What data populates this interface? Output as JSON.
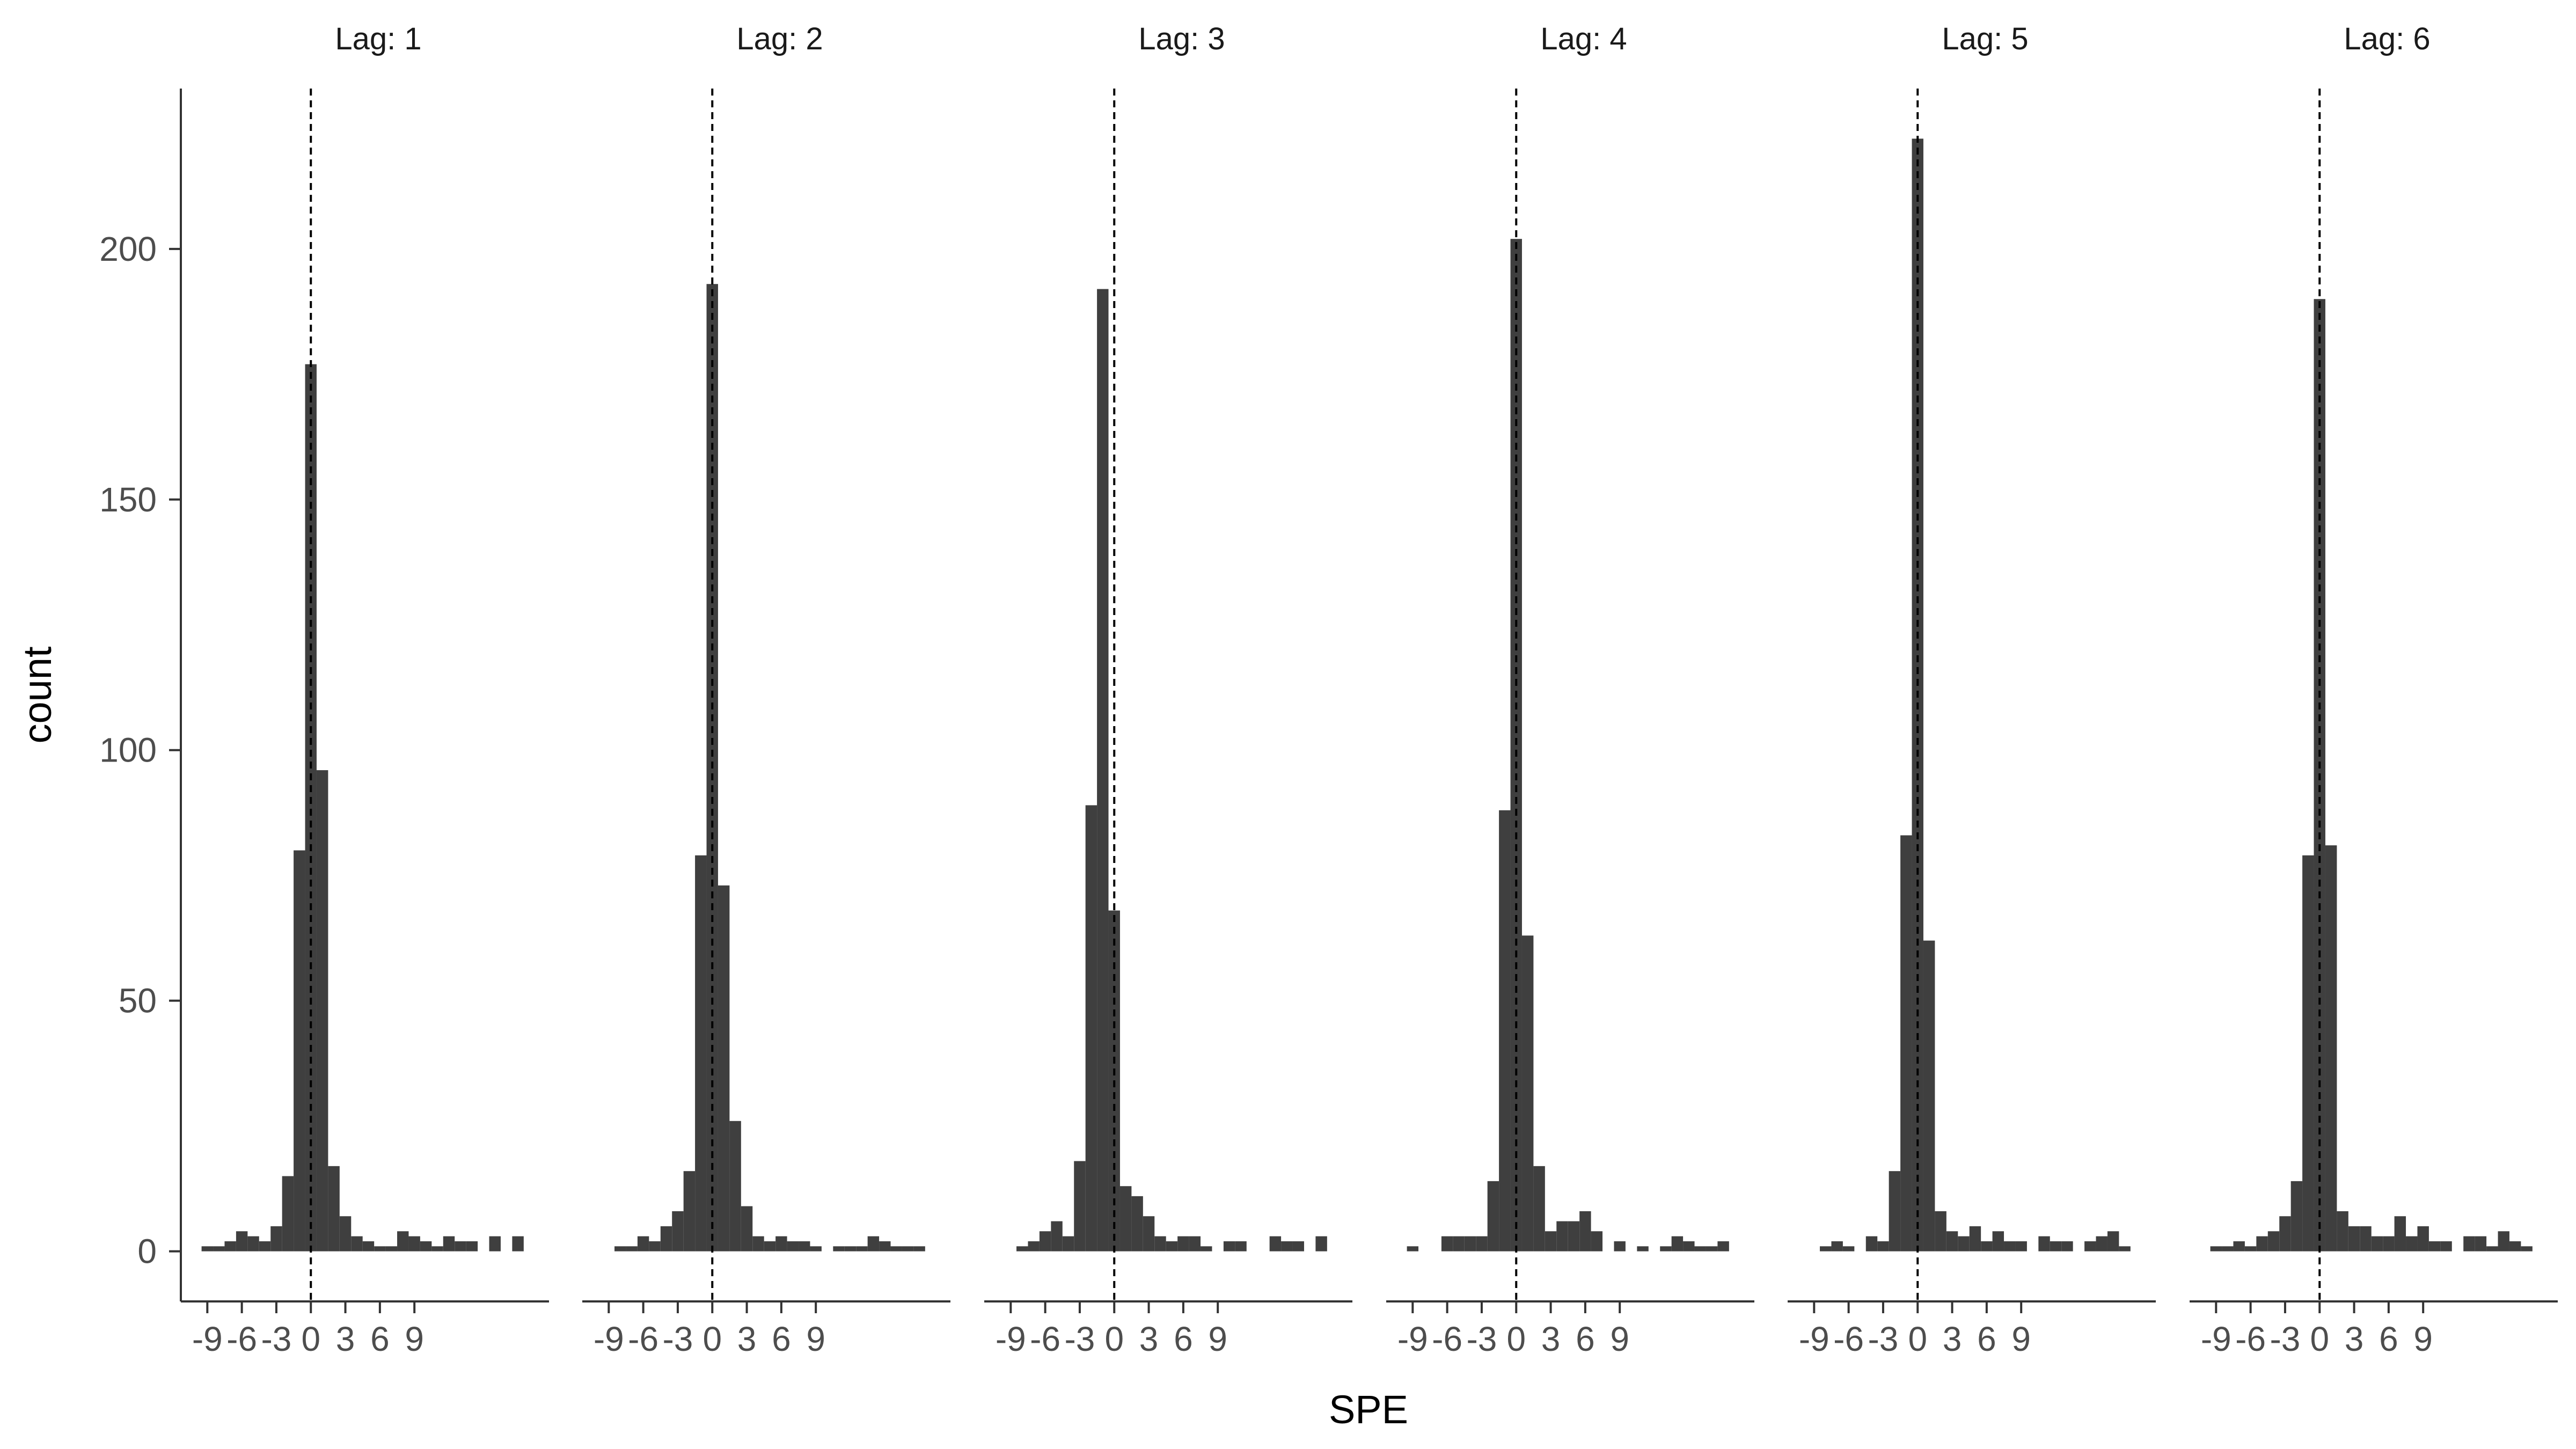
{
  "chart_data": {
    "type": "bar",
    "xlabel": "SPE",
    "ylabel": "count",
    "ylim": [
      -10,
      232
    ],
    "yticks": [
      0,
      50,
      100,
      150,
      200
    ],
    "xlim": [
      -11.3,
      20.7
    ],
    "xticks": [
      -9,
      -6,
      -3,
      0,
      3,
      6,
      9
    ],
    "xtick_labels": [
      "-9",
      "-6",
      "-3",
      "0",
      "3",
      "6",
      "9"
    ],
    "bin_width": 1,
    "reference_line": {
      "x": 0,
      "style": "dashed"
    },
    "grid": false,
    "bar_color": "#3f3f3f",
    "panels": [
      {
        "label": "Lag: 1",
        "bins": [
          -9,
          -8,
          -7,
          -6,
          -5,
          -4,
          -3,
          -2,
          -1,
          0,
          1,
          2,
          3,
          4,
          5,
          6,
          7,
          8,
          9,
          10,
          11,
          12,
          13,
          14,
          15,
          16,
          17,
          18
        ],
        "counts": [
          1,
          1,
          2,
          4,
          3,
          2,
          5,
          15,
          80,
          177,
          96,
          17,
          7,
          3,
          2,
          1,
          1,
          4,
          3,
          2,
          1,
          3,
          2,
          2,
          0,
          3,
          0,
          3
        ]
      },
      {
        "label": "Lag: 2",
        "bins": [
          -9,
          -8,
          -7,
          -6,
          -5,
          -4,
          -3,
          -2,
          -1,
          0,
          1,
          2,
          3,
          4,
          5,
          6,
          7,
          8,
          9,
          10,
          11,
          12,
          13,
          14,
          15,
          16,
          17,
          18
        ],
        "counts": [
          0,
          1,
          1,
          3,
          2,
          5,
          8,
          16,
          79,
          193,
          73,
          26,
          9,
          3,
          2,
          3,
          2,
          2,
          1,
          0,
          1,
          1,
          1,
          3,
          2,
          1,
          1,
          1
        ]
      },
      {
        "label": "Lag: 3",
        "bins": [
          -9,
          -8,
          -7,
          -6,
          -5,
          -4,
          -3,
          -2,
          -1,
          0,
          1,
          2,
          3,
          4,
          5,
          6,
          7,
          8,
          9,
          10,
          11,
          12,
          13,
          14,
          15,
          16,
          17,
          18
        ],
        "counts": [
          0,
          1,
          2,
          4,
          6,
          3,
          18,
          89,
          192,
          68,
          13,
          11,
          7,
          3,
          2,
          3,
          3,
          1,
          0,
          2,
          2,
          0,
          0,
          3,
          2,
          2,
          0,
          3
        ]
      },
      {
        "label": "Lag: 4",
        "bins": [
          -9,
          -8,
          -7,
          -6,
          -5,
          -4,
          -3,
          -2,
          -1,
          0,
          1,
          2,
          3,
          4,
          5,
          6,
          7,
          8,
          9,
          10,
          11,
          12,
          13,
          14,
          15,
          16,
          17,
          18
        ],
        "counts": [
          1,
          0,
          0,
          3,
          3,
          3,
          3,
          14,
          88,
          202,
          63,
          17,
          4,
          6,
          6,
          8,
          4,
          0,
          2,
          0,
          1,
          0,
          1,
          3,
          2,
          1,
          1,
          2
        ]
      },
      {
        "label": "Lag: 5",
        "bins": [
          -9,
          -8,
          -7,
          -6,
          -5,
          -4,
          -3,
          -2,
          -1,
          0,
          1,
          2,
          3,
          4,
          5,
          6,
          7,
          8,
          9,
          10,
          11,
          12,
          13,
          14,
          15,
          16,
          17,
          18
        ],
        "counts": [
          0,
          1,
          2,
          1,
          0,
          3,
          2,
          16,
          83,
          222,
          62,
          8,
          4,
          3,
          5,
          2,
          4,
          2,
          2,
          0,
          3,
          2,
          2,
          0,
          2,
          3,
          4,
          1
        ]
      },
      {
        "label": "Lag: 6",
        "bins": [
          -9,
          -8,
          -7,
          -6,
          -5,
          -4,
          -3,
          -2,
          -1,
          0,
          1,
          2,
          3,
          4,
          5,
          6,
          7,
          8,
          9,
          10,
          11,
          12,
          13,
          14,
          15,
          16,
          17,
          18
        ],
        "counts": [
          1,
          1,
          2,
          1,
          3,
          4,
          7,
          14,
          79,
          190,
          81,
          8,
          5,
          5,
          3,
          3,
          7,
          3,
          5,
          2,
          2,
          0,
          3,
          3,
          1,
          4,
          2,
          1
        ]
      }
    ]
  }
}
